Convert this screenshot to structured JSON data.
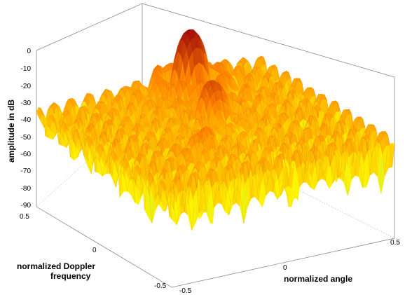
{
  "chart_data": {
    "type": "surface",
    "title": "",
    "zlabel": "amplitude in dB",
    "ylabel_lines": [
      "normalized Doppler",
      "frequency"
    ],
    "xlabel": "normalized angle",
    "z_ticks": [
      "0",
      "-10",
      "-20",
      "-30",
      "-40",
      "-50",
      "-60",
      "-70",
      "-80",
      "-90"
    ],
    "z_range": [
      -90,
      0
    ],
    "doppler_ticks": [
      "0.5",
      "0",
      "-0.5"
    ],
    "angle_ticks": [
      "-0.5",
      "0",
      "0.5"
    ],
    "doppler_range": [
      -0.5,
      0.5
    ],
    "angle_range": [
      -0.5,
      0.5
    ],
    "grid": true,
    "colormap": "autumn-to-cyan",
    "peaks": [
      {
        "angle": 0.12,
        "doppler": 0.38,
        "amplitude_db": 0
      },
      {
        "angle": 0.05,
        "doppler": 0.1,
        "amplitude_db": -15
      },
      {
        "angle": -0.15,
        "doppler": -0.15,
        "amplitude_db": -28
      },
      {
        "angle": -0.28,
        "doppler": -0.22,
        "amplitude_db": -35
      }
    ],
    "sidelobe_level_db": -25,
    "null_depth_db": -90
  }
}
